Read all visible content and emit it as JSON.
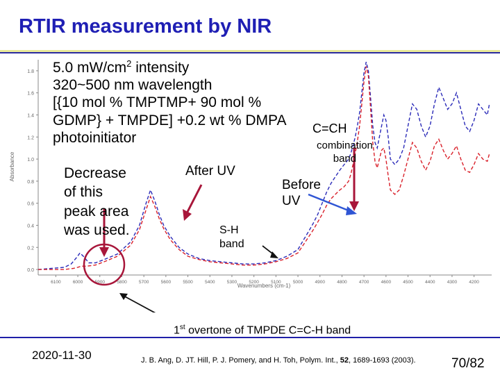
{
  "slide": {
    "title": "RTIR measurement by NIR",
    "spec_lines": [
      "5.0 mW/cm",
      "2",
      " intensity",
      "320~500 nm wavelength",
      "[{10 mol % TMPTMP+ 90 mol %",
      "GDMP} + TMPDE] +0.2 wt % DMPA",
      "photoinitiator"
    ],
    "annotations": {
      "decrease": [
        "Decrease",
        "of this",
        "peak area",
        "was used."
      ],
      "after_uv": "After UV",
      "before_uv": [
        "Before",
        "UV"
      ],
      "sh_band": [
        "S-H",
        "band"
      ],
      "cch": "C=CH",
      "combination_band": [
        "combination",
        "band"
      ],
      "overtone": [
        "1",
        "st",
        " overtone of TMPDE C=C-H band"
      ]
    },
    "footer": {
      "date": "2020-11-30",
      "reference_parts": [
        "J. B. Ang, D. JT. Hill, P. J. Pomery, and H. Toh, Polym. Int., ",
        "52",
        ", 1689-1693 (2003)."
      ],
      "page": "70/82"
    },
    "colors": {
      "title": "#1f1fb4",
      "arrow": "#a8163a",
      "before_arrow": "#2f55d4",
      "before_curve": "#2a2ab8",
      "after_curve": "#d9202a"
    }
  },
  "chart_data": {
    "type": "line",
    "title": "",
    "xlabel": "Wavenumbers (cm-1)",
    "ylabel": "Absorbance",
    "x_ticks": [
      "6100",
      "6000",
      "5900",
      "5800",
      "5700",
      "5600",
      "5500",
      "5400",
      "5300",
      "5200",
      "5100",
      "5000",
      "4900",
      "4800",
      "4700",
      "4600",
      "4500",
      "4400",
      "4300",
      "4200"
    ],
    "xlim": [
      6180,
      4120
    ],
    "y_ticks": [
      "0.0",
      "0.2",
      "0.4",
      "0.6",
      "0.8",
      "1.0",
      "1.2",
      "1.4",
      "1.6",
      "1.8"
    ],
    "ylim": [
      -0.05,
      1.9
    ],
    "grid": false,
    "series": [
      {
        "name": "Before UV",
        "style": "dashed",
        "x": [
          6180,
          6120,
          6060,
          6030,
          6005,
          5990,
          5975,
          5950,
          5920,
          5880,
          5820,
          5760,
          5720,
          5690,
          5670,
          5650,
          5630,
          5610,
          5580,
          5540,
          5500,
          5450,
          5400,
          5350,
          5300,
          5250,
          5200,
          5150,
          5100,
          5050,
          5000,
          4980,
          4950,
          4930,
          4910,
          4890,
          4870,
          4850,
          4830,
          4810,
          4790,
          4770,
          4760,
          4750,
          4740,
          4730,
          4720,
          4710,
          4700,
          4690,
          4680,
          4670,
          4660,
          4650,
          4640,
          4630,
          4620,
          4610,
          4600,
          4590,
          4580,
          4560,
          4540,
          4520,
          4500,
          4480,
          4460,
          4440,
          4420,
          4400,
          4380,
          4360,
          4340,
          4320,
          4300,
          4280,
          4260,
          4240,
          4220,
          4200,
          4180,
          4160,
          4140,
          4130
        ],
        "y": [
          0.0,
          0.01,
          0.02,
          0.05,
          0.11,
          0.15,
          0.12,
          0.06,
          0.06,
          0.09,
          0.14,
          0.25,
          0.4,
          0.6,
          0.72,
          0.62,
          0.5,
          0.4,
          0.3,
          0.2,
          0.14,
          0.1,
          0.08,
          0.07,
          0.06,
          0.05,
          0.05,
          0.06,
          0.08,
          0.12,
          0.18,
          0.25,
          0.35,
          0.42,
          0.5,
          0.6,
          0.7,
          0.78,
          0.84,
          0.9,
          0.95,
          1.0,
          1.05,
          1.12,
          1.2,
          1.3,
          1.42,
          1.6,
          1.78,
          1.88,
          1.8,
          1.55,
          1.3,
          1.15,
          1.1,
          1.2,
          1.3,
          1.4,
          1.35,
          1.2,
          1.0,
          0.95,
          1.0,
          1.1,
          1.3,
          1.5,
          1.45,
          1.3,
          1.2,
          1.3,
          1.5,
          1.65,
          1.55,
          1.45,
          1.5,
          1.6,
          1.45,
          1.3,
          1.25,
          1.35,
          1.5,
          1.45,
          1.4,
          1.5
        ]
      },
      {
        "name": "After UV",
        "style": "dashed",
        "x": [
          6180,
          6120,
          6060,
          6020,
          6000,
          5985,
          5960,
          5920,
          5880,
          5820,
          5760,
          5720,
          5690,
          5670,
          5650,
          5630,
          5610,
          5580,
          5540,
          5500,
          5450,
          5400,
          5350,
          5300,
          5250,
          5200,
          5150,
          5100,
          5050,
          5000,
          4980,
          4950,
          4930,
          4910,
          4890,
          4870,
          4850,
          4830,
          4810,
          4790,
          4770,
          4760,
          4750,
          4740,
          4730,
          4720,
          4710,
          4700,
          4690,
          4680,
          4670,
          4660,
          4650,
          4640,
          4630,
          4620,
          4610,
          4600,
          4590,
          4580,
          4560,
          4540,
          4520,
          4500,
          4480,
          4460,
          4440,
          4420,
          4400,
          4380,
          4360,
          4340,
          4320,
          4300,
          4280,
          4260,
          4240,
          4220,
          4200,
          4180,
          4160,
          4140,
          4130
        ],
        "y": [
          0.0,
          0.0,
          0.0,
          0.01,
          0.02,
          0.03,
          0.03,
          0.04,
          0.07,
          0.12,
          0.22,
          0.36,
          0.54,
          0.66,
          0.57,
          0.46,
          0.37,
          0.27,
          0.18,
          0.12,
          0.09,
          0.07,
          0.06,
          0.05,
          0.04,
          0.04,
          0.05,
          0.07,
          0.1,
          0.15,
          0.21,
          0.3,
          0.36,
          0.43,
          0.5,
          0.58,
          0.64,
          0.68,
          0.72,
          0.75,
          0.8,
          0.86,
          0.95,
          1.05,
          1.16,
          1.3,
          1.5,
          1.7,
          1.84,
          1.75,
          1.45,
          1.15,
          0.98,
          0.92,
          1.0,
          1.08,
          1.1,
          1.0,
          0.85,
          0.72,
          0.68,
          0.72,
          0.85,
          1.0,
          1.15,
          1.1,
          0.98,
          0.9,
          0.98,
          1.12,
          1.18,
          1.08,
          1.0,
          1.05,
          1.12,
          1.0,
          0.9,
          0.88,
          0.95,
          1.05,
          1.0,
          0.98,
          1.05
        ]
      }
    ]
  }
}
